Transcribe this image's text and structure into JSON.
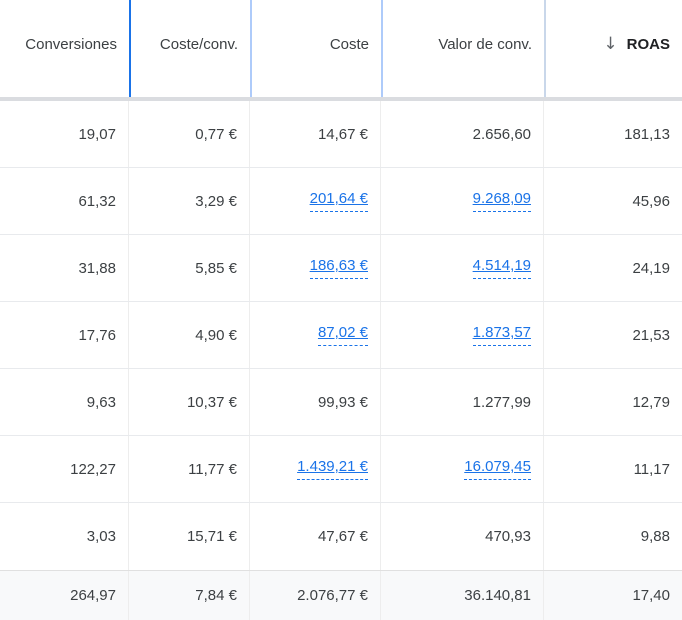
{
  "colors": {
    "sort-border-blue": "#1a73e8",
    "header-border-light-blue": "#aecbfa",
    "link-blue": "#1a73e8",
    "header-divider-gray": "#dadce0",
    "row-border-gray": "#e8eaed",
    "body-col-border-gray": "#ededed",
    "total-row-bg": "#f8f9fa",
    "text-dark": "#3c4043",
    "sort-arrow-gray": "#5f6368"
  },
  "table": {
    "columns": [
      {
        "label": "Conversiones"
      },
      {
        "label": "Coste/conv."
      },
      {
        "label": "Coste"
      },
      {
        "label": "Valor de conv."
      },
      {
        "label": "ROAS",
        "sorted": "descending",
        "sort_icon": "↓"
      }
    ],
    "rows": [
      {
        "cells": [
          {
            "text": "19,07"
          },
          {
            "text": "0,77 €"
          },
          {
            "text": "14,67 €"
          },
          {
            "text": "2.656,60"
          },
          {
            "text": "181,13"
          }
        ]
      },
      {
        "cells": [
          {
            "text": "61,32"
          },
          {
            "text": "3,29 €"
          },
          {
            "text": "201,64 €",
            "link": true
          },
          {
            "text": "9.268,09",
            "link": true
          },
          {
            "text": "45,96"
          }
        ]
      },
      {
        "cells": [
          {
            "text": "31,88"
          },
          {
            "text": "5,85 €"
          },
          {
            "text": "186,63 €",
            "link": true
          },
          {
            "text": "4.514,19",
            "link": true
          },
          {
            "text": "24,19"
          }
        ]
      },
      {
        "cells": [
          {
            "text": "17,76"
          },
          {
            "text": "4,90 €"
          },
          {
            "text": "87,02 €",
            "link": true
          },
          {
            "text": "1.873,57",
            "link": true
          },
          {
            "text": "21,53"
          }
        ]
      },
      {
        "cells": [
          {
            "text": "9,63"
          },
          {
            "text": "10,37 €"
          },
          {
            "text": "99,93 €"
          },
          {
            "text": "1.277,99"
          },
          {
            "text": "12,79"
          }
        ]
      },
      {
        "cells": [
          {
            "text": "122,27"
          },
          {
            "text": "11,77 €"
          },
          {
            "text": "1.439,21 €",
            "link": true
          },
          {
            "text": "16.079,45",
            "link": true
          },
          {
            "text": "11,17"
          }
        ]
      },
      {
        "cells": [
          {
            "text": "3,03"
          },
          {
            "text": "15,71 €"
          },
          {
            "text": "47,67 €"
          },
          {
            "text": "470,93"
          },
          {
            "text": "9,88"
          }
        ]
      }
    ],
    "total_row": {
      "cells": [
        "264,97",
        "7,84 €",
        "2.076,77 €",
        "36.140,81",
        "17,40"
      ]
    }
  }
}
